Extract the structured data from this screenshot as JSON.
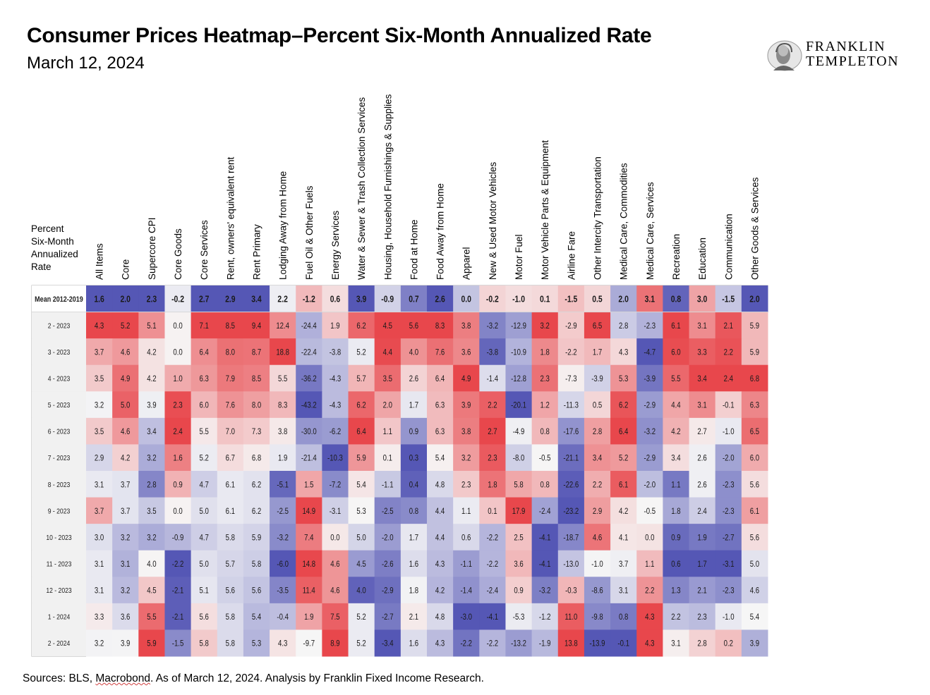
{
  "title": "Consumer Prices Heatmap–Percent Six-Month Annualized Rate",
  "subtitle": "March 12, 2024",
  "logo": {
    "line1": "FRANKLIN",
    "line2": "TEMPLETON",
    "icon": "benjamin-franklin-portrait-icon"
  },
  "corner_label": [
    "Percent",
    "Six-Month",
    "Annualized",
    "Rate"
  ],
  "source": {
    "before": "Sources: BLS, ",
    "underlined": "Macrobond",
    "after": ". As of March 12, 2024. Analysis by Franklin Fixed Income Research."
  },
  "colors": {
    "high": "#e8474c",
    "low": "#5557b5",
    "mid": "#f6f6f6",
    "border": "#b0b0b0"
  },
  "chart_data": {
    "type": "heatmap",
    "color_scale": "per-column, red = high, blue = low",
    "columns": [
      "All Items",
      "Core",
      "Supercore CPI",
      "Core Goods",
      "Core Services",
      "Rent, owners' equivalent rent",
      "Rent Primary",
      "Lodging Away from Home",
      "Fuel Oil & Other Fuels",
      "Energy Services",
      "Water & Sewer & Trash Collection Services",
      "Housing, Household Furnishings & Supplies",
      "Food at Home",
      "Food Away from Home",
      "Apparel",
      "New & Used Motor Vehicles",
      "Motor Fuel",
      "Motor Vehicle Parts & Equipment",
      "Airline Fare",
      "Other Intercity Transportation",
      "Medical Care, Commodities",
      "Medical Care, Services",
      "Recreation",
      "Education",
      "Communication",
      "Other Goods & Services"
    ],
    "rows": [
      "Mean 2012-2019",
      "2 - 2023",
      "3 - 2023",
      "4 - 2023",
      "5 - 2023",
      "6 - 2023",
      "7 - 2023",
      "8 - 2023",
      "9 - 2023",
      "10 - 2023",
      "11 - 2023",
      "12 - 2023",
      "1 - 2024",
      "2 - 2024"
    ],
    "values": [
      [
        "1.6",
        "2.0",
        "2.3",
        "-0.2",
        "2.7",
        "2.9",
        "3.4",
        "2.2",
        "-1.2",
        "0.6",
        "3.9",
        "-0.9",
        "0.7",
        "2.6",
        "0.0",
        "-0.2",
        "-1.0",
        "0.1",
        "-1.5",
        "0.5",
        "2.0",
        "3.1",
        "0.8",
        "3.0",
        "-1.5",
        "2.0"
      ],
      [
        "4.3",
        "5.2",
        "5.1",
        "0.0",
        "7.1",
        "8.5",
        "9.4",
        "12.4",
        "-24.4",
        "1.9",
        "6.2",
        "4.5",
        "5.6",
        "8.3",
        "3.8",
        "-3.2",
        "-12.9",
        "3.2",
        "-2.9",
        "6.5",
        "2.8",
        "-2.3",
        "6.1",
        "3.1",
        "2.1",
        "5.9"
      ],
      [
        "3.7",
        "4.6",
        "4.2",
        "0.0",
        "6.4",
        "8.0",
        "8.7",
        "18.8",
        "-22.4",
        "-3.8",
        "5.2",
        "4.4",
        "4.0",
        "7.6",
        "3.6",
        "-3.8",
        "-10.9",
        "1.8",
        "-2.2",
        "1.7",
        "4.3",
        "-4.7",
        "6.0",
        "3.3",
        "2.2",
        "5.9"
      ],
      [
        "3.5",
        "4.9",
        "4.2",
        "1.0",
        "6.3",
        "7.9",
        "8.5",
        "5.5",
        "-36.2",
        "-4.3",
        "5.7",
        "3.5",
        "2.6",
        "6.4",
        "4.9",
        "-1.4",
        "-12.8",
        "2.3",
        "-7.3",
        "-3.9",
        "5.3",
        "-3.9",
        "5.5",
        "3.4",
        "2.4",
        "6.8"
      ],
      [
        "3.2",
        "5.0",
        "3.9",
        "2.3",
        "6.0",
        "7.6",
        "8.0",
        "8.3",
        "-43.2",
        "-4.3",
        "6.2",
        "2.0",
        "1.7",
        "6.3",
        "3.9",
        "2.2",
        "-20.1",
        "1.2",
        "-11.3",
        "0.5",
        "6.2",
        "-2.9",
        "4.4",
        "3.1",
        "-0.1",
        "6.3"
      ],
      [
        "3.5",
        "4.6",
        "3.4",
        "2.4",
        "5.5",
        "7.0",
        "7.3",
        "3.8",
        "-30.0",
        "-6.2",
        "6.4",
        "1.1",
        "0.9",
        "6.3",
        "3.8",
        "2.7",
        "-4.9",
        "0.8",
        "-17.6",
        "2.8",
        "6.4",
        "-3.2",
        "4.2",
        "2.7",
        "-1.0",
        "6.5"
      ],
      [
        "2.9",
        "4.2",
        "3.2",
        "1.6",
        "5.2",
        "6.7",
        "6.8",
        "1.9",
        "-21.4",
        "-10.3",
        "5.9",
        "0.1",
        "0.3",
        "5.4",
        "3.2",
        "2.3",
        "-8.0",
        "-0.5",
        "-21.1",
        "3.4",
        "5.2",
        "-2.9",
        "3.4",
        "2.6",
        "-2.0",
        "6.0"
      ],
      [
        "3.1",
        "3.7",
        "2.8",
        "0.9",
        "4.7",
        "6.1",
        "6.2",
        "-5.1",
        "1.5",
        "-7.2",
        "5.4",
        "-1.1",
        "0.4",
        "4.8",
        "2.3",
        "1.8",
        "5.8",
        "0.8",
        "-22.6",
        "2.2",
        "6.1",
        "-2.0",
        "1.1",
        "2.6",
        "-2.3",
        "5.6"
      ],
      [
        "3.7",
        "3.7",
        "3.5",
        "0.0",
        "5.0",
        "6.1",
        "6.2",
        "-2.5",
        "14.9",
        "-3.1",
        "5.3",
        "-2.5",
        "0.8",
        "4.4",
        "1.1",
        "0.1",
        "17.9",
        "-2.4",
        "-23.2",
        "2.9",
        "4.2",
        "-0.5",
        "1.8",
        "2.4",
        "-2.3",
        "6.1"
      ],
      [
        "3.0",
        "3.2",
        "3.2",
        "-0.9",
        "4.7",
        "5.8",
        "5.9",
        "-3.2",
        "7.4",
        "0.0",
        "5.0",
        "-2.0",
        "1.7",
        "4.4",
        "0.6",
        "-2.2",
        "2.5",
        "-4.1",
        "-18.7",
        "4.6",
        "4.1",
        "0.0",
        "0.9",
        "1.9",
        "-2.7",
        "5.6"
      ],
      [
        "3.1",
        "3.1",
        "4.0",
        "-2.2",
        "5.0",
        "5.7",
        "5.8",
        "-6.0",
        "14.8",
        "4.6",
        "4.5",
        "-2.6",
        "1.6",
        "4.3",
        "-1.1",
        "-2.2",
        "3.6",
        "-4.1",
        "-13.0",
        "-1.0",
        "3.7",
        "1.1",
        "0.6",
        "1.7",
        "-3.1",
        "5.0"
      ],
      [
        "3.1",
        "3.2",
        "4.5",
        "-2.1",
        "5.1",
        "5.6",
        "5.6",
        "-3.5",
        "11.4",
        "4.6",
        "4.0",
        "-2.9",
        "1.8",
        "4.2",
        "-1.4",
        "-2.4",
        "0.9",
        "-3.2",
        "-0.3",
        "-8.6",
        "3.1",
        "2.2",
        "1.3",
        "2.1",
        "-2.3",
        "4.6"
      ],
      [
        "3.3",
        "3.6",
        "5.5",
        "-2.1",
        "5.6",
        "5.8",
        "5.4",
        "-0.4",
        "1.9",
        "7.5",
        "5.2",
        "-2.7",
        "2.1",
        "4.8",
        "-3.0",
        "-4.1",
        "-5.3",
        "-1.2",
        "11.0",
        "-9.8",
        "0.8",
        "4.3",
        "2.2",
        "2.3",
        "-1.0",
        "5.4"
      ],
      [
        "3.2",
        "3.9",
        "5.9",
        "-1.5",
        "5.8",
        "5.8",
        "5.3",
        "4.3",
        "-9.7",
        "8.9",
        "5.2",
        "-3.4",
        "1.6",
        "4.3",
        "-2.2",
        "-2.2",
        "-13.2",
        "-1.9",
        "13.8",
        "-13.9",
        "-0.1",
        "4.3",
        "3.1",
        "2.8",
        "0.2",
        "3.9"
      ]
    ]
  }
}
